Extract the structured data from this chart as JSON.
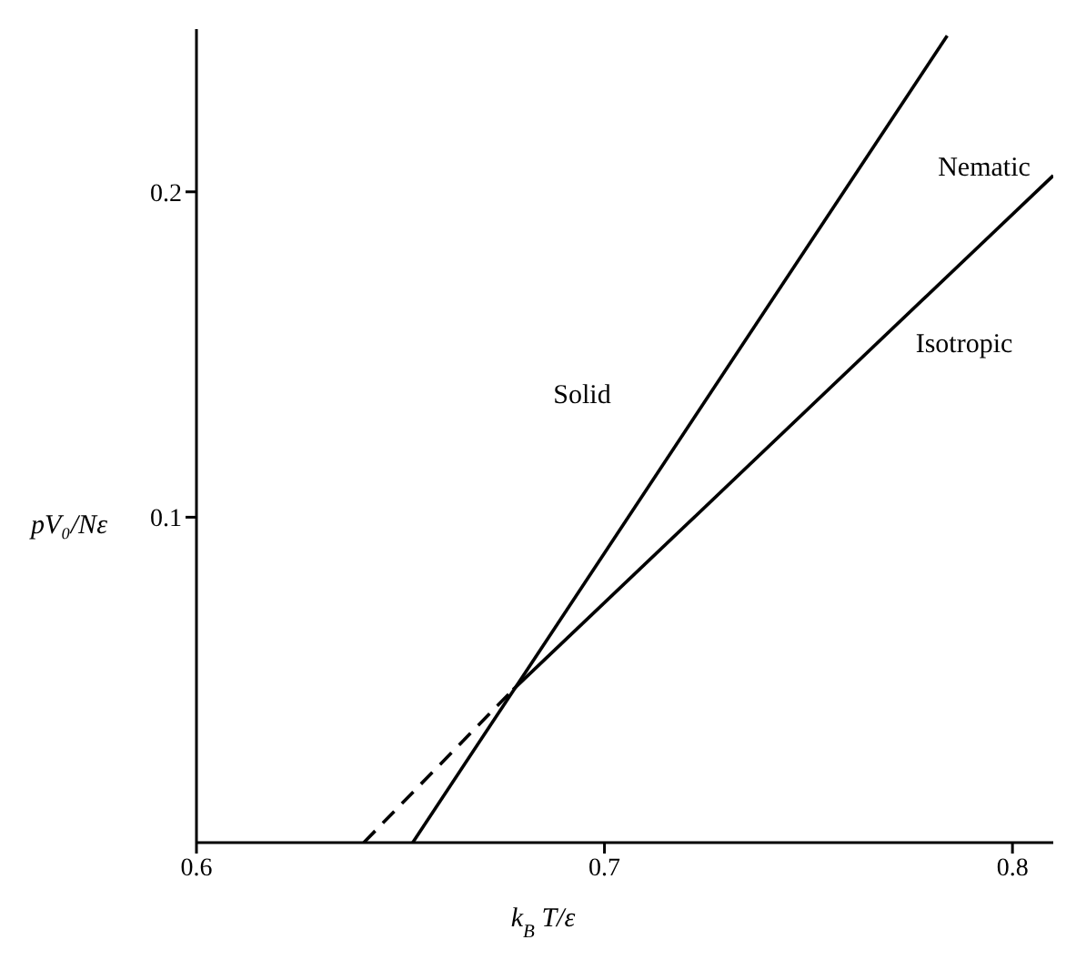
{
  "chart_data": {
    "type": "line",
    "xlabel": "k$_{B}$ T/ε",
    "ylabel": "pV₀/Nε",
    "series": [
      {
        "color": "#000000",
        "line_style": "solid",
        "x": [
          0.653,
          0.784
        ],
        "values": [
          0,
          0.248
        ]
      },
      {
        "color": "#000000",
        "line_style": "solid",
        "x": [
          0.6776,
          0.81
        ],
        "values": [
          0.047,
          0.205
        ]
      },
      {
        "color": "#000000",
        "line_style": "dashed",
        "x": [
          0.641,
          0.6776
        ],
        "values": [
          0,
          0.047
        ]
      }
    ],
    "xlim": [
      0.6,
      0.81
    ],
    "ylim": [
      0,
      0.25
    ],
    "xticks": [
      0.6,
      0.7,
      0.8
    ],
    "yticks": [
      0.1,
      0.2
    ],
    "grid": false,
    "legend": false,
    "marker": "none",
    "annotations": [
      "Solid",
      "Nematic",
      "Isotropic"
    ]
  }
}
